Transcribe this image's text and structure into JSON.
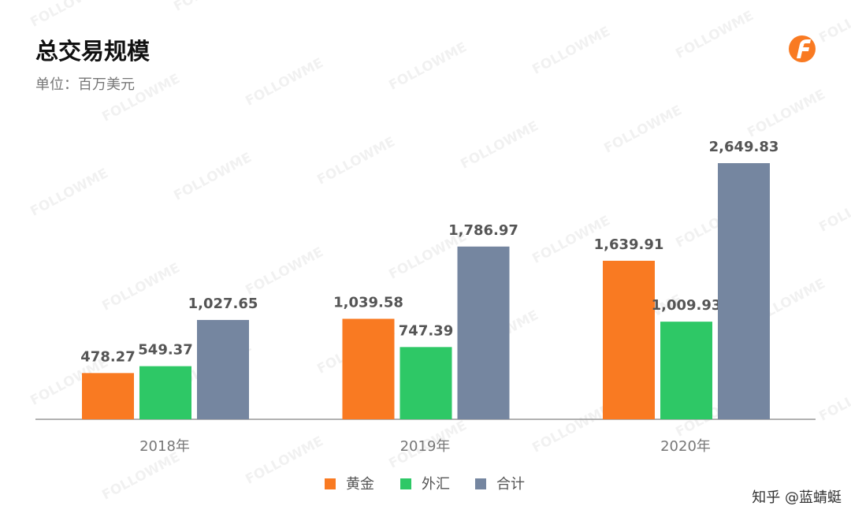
{
  "chart_data": {
    "type": "bar",
    "title": "总交易规模",
    "subtitle": "单位：百万美元",
    "categories": [
      "2018年",
      "2019年",
      "2020年"
    ],
    "series": [
      {
        "name": "黄金",
        "color": "#f97a22",
        "values": [
          478.27,
          1039.58,
          1639.91
        ],
        "value_labels": [
          "478.27",
          "1,039.58",
          "1,639.91"
        ]
      },
      {
        "name": "外汇",
        "color": "#2ec866",
        "values": [
          549.37,
          747.39,
          1009.93
        ],
        "value_labels": [
          "549.37",
          "747.39",
          "1,009.93"
        ]
      },
      {
        "name": "合计",
        "color": "#7586a0",
        "values": [
          1027.65,
          1786.97,
          2649.83
        ],
        "value_labels": [
          "1,027.65",
          "1,786.97",
          "2,649.83"
        ]
      }
    ],
    "watermark": "FOLLOWME",
    "credit": "知乎 @蓝蜻蜓"
  }
}
